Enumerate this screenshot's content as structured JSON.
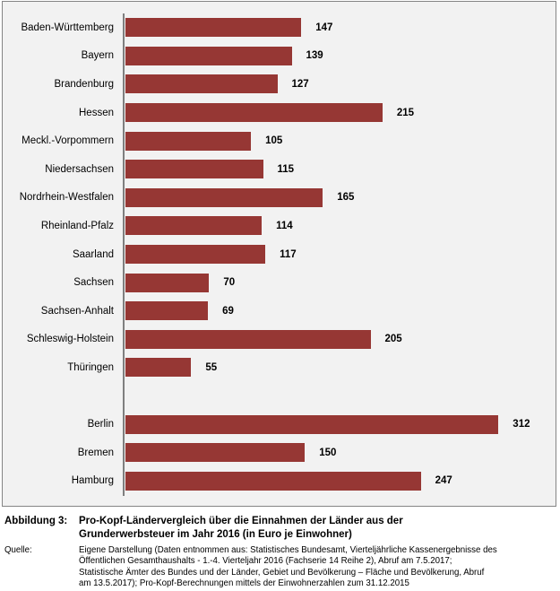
{
  "chart_data": {
    "type": "bar",
    "orientation": "horizontal",
    "title": "Pro-Kopf-Ländervergleich über die Einnahmen der Länder aus der Grunderwerbsteuer im Jahr 2016 (in Euro je Einwohner)",
    "xlabel": "",
    "ylabel": "",
    "xlim": [
      0,
      320
    ],
    "grid": false,
    "legend": false,
    "value_axis_labels_visible": false,
    "bar_color": "#963734",
    "plot_background": "#f2f2f2",
    "categories": [
      "Baden-Württemberg",
      "Bayern",
      "Brandenburg",
      "Hessen",
      "Meckl.-Vorpommern",
      "Niedersachsen",
      "Nordrhein-Westfalen",
      "Rheinland-Pfalz",
      "Saarland",
      "Sachsen",
      "Sachsen-Anhalt",
      "Schleswig-Holstein",
      "Thüringen",
      "Berlin",
      "Bremen",
      "Hamburg"
    ],
    "values": [
      147,
      139,
      127,
      215,
      105,
      115,
      165,
      114,
      117,
      70,
      69,
      205,
      55,
      312,
      150,
      247
    ],
    "gap_after_index": 12
  },
  "figure": {
    "label": "Abbildung 3:",
    "title": "Pro-Kopf-Ländervergleich über die Einnahmen der Länder aus der Grunderwerbsteuer im Jahr 2016 (in Euro je Einwohner)",
    "title_lines": [
      "Pro-Kopf-Ländervergleich über die Einnahmen der Länder aus der",
      "Grunderwerbsteuer im Jahr 2016 (in Euro je Einwohner)"
    ]
  },
  "source": {
    "label": "Quelle:",
    "text": "Eigene Darstellung (Daten entnommen aus: Statistisches Bundesamt, Vierteljährliche Kassenergebnisse des Öffentlichen Gesamthaushalts - 1.-4. Vierteljahr 2016 (Fachserie 14 Reihe 2), Abruf am 7.5.2017; Statistische Ämter des Bundes und der Länder, Gebiet und Bevölkerung – Fläche und Bevölkerung, Abruf am 13.5.2017); Pro-Kopf-Berechnungen mittels der Einwohnerzahlen zum 31.12.2015",
    "lines": [
      "Eigene Darstellung (Daten entnommen aus: Statistisches Bundesamt, Vierteljährliche Kassenergebnisse des",
      "Öffentlichen Gesamthaushalts - 1.-4. Vierteljahr 2016 (Fachserie 14 Reihe 2), Abruf am 7.5.2017;",
      "Statistische Ämter des Bundes und der Länder, Gebiet und Bevölkerung – Fläche und Bevölkerung, Abruf",
      "am 13.5.2017); Pro-Kopf-Berechnungen mittels der Einwohnerzahlen zum 31.12.2015"
    ]
  }
}
